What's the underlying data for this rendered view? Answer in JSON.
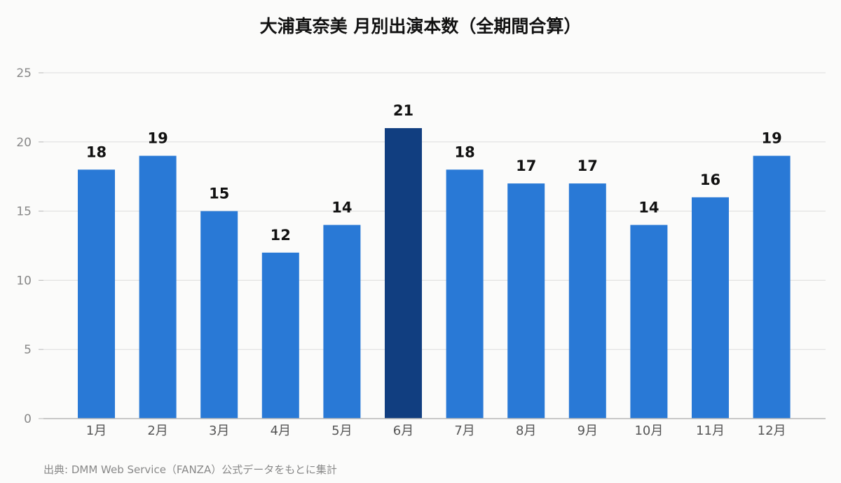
{
  "chart_data": {
    "type": "bar",
    "title": "大浦真奈美 月別出演本数（全期間合算）",
    "categories": [
      "1月",
      "2月",
      "3月",
      "4月",
      "5月",
      "6月",
      "7月",
      "8月",
      "9月",
      "10月",
      "11月",
      "12月"
    ],
    "values": [
      18,
      19,
      15,
      12,
      14,
      21,
      18,
      17,
      17,
      14,
      16,
      19
    ],
    "highlight_category": "6月",
    "ylim": [
      0,
      25
    ],
    "yticks": [
      0,
      5,
      10,
      15,
      20,
      25
    ],
    "xlabel": "",
    "ylabel": "",
    "grid": true,
    "data_labels": true,
    "colors": {
      "bar": "#2979d6",
      "highlight": "#113e80",
      "grid": "#dddddd",
      "axis": "#b8b8b8",
      "tick_text": "#888888",
      "category_text": "#555555",
      "value_text": "#111111"
    }
  },
  "source": "出典: DMM Web Service（FANZA）公式データをもとに集計"
}
